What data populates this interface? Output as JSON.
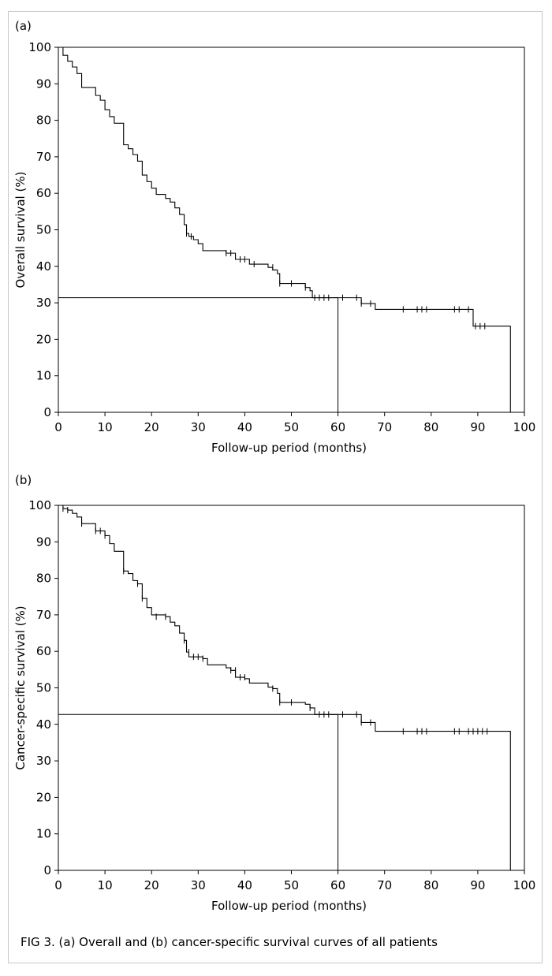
{
  "caption": "FIG 3.  (a) Overall and (b) cancer-specific survival curves of all patients",
  "chart_data": [
    {
      "type": "line",
      "panel_label": "(a)",
      "xlabel": "Follow-up period (months)",
      "ylabel": "Overall survival (%)",
      "xlim": [
        0,
        100
      ],
      "ylim": [
        0,
        100
      ],
      "xticks": [
        0,
        10,
        20,
        30,
        40,
        50,
        60,
        70,
        80,
        90,
        100
      ],
      "yticks": [
        0,
        10,
        20,
        30,
        40,
        50,
        60,
        70,
        80,
        90,
        100
      ],
      "grid": false,
      "series": [
        {
          "step_points": [
            [
              0,
              100
            ],
            [
              1,
              97.8
            ],
            [
              2,
              96.2
            ],
            [
              3,
              94.6
            ],
            [
              4,
              92.8
            ],
            [
              5,
              89
            ],
            [
              8,
              86.8
            ],
            [
              9,
              85.5
            ],
            [
              10,
              82.9
            ],
            [
              11,
              81
            ],
            [
              12,
              79.2
            ],
            [
              14,
              73.3
            ],
            [
              15,
              72.2
            ],
            [
              16,
              70.6
            ],
            [
              17,
              68.8
            ],
            [
              18,
              65
            ],
            [
              19,
              63.2
            ],
            [
              20,
              61.4
            ],
            [
              21,
              59.7
            ],
            [
              23,
              58.6
            ],
            [
              24,
              57.6
            ],
            [
              25,
              56
            ],
            [
              26,
              54.2
            ],
            [
              27,
              51.4
            ],
            [
              27.5,
              49
            ],
            [
              28,
              48.2
            ],
            [
              29,
              47.3
            ],
            [
              30,
              46.2
            ],
            [
              31,
              44.3
            ],
            [
              36,
              43.6
            ],
            [
              38,
              41.9
            ],
            [
              40,
              41.9
            ],
            [
              41,
              40.6
            ],
            [
              45,
              39.7
            ],
            [
              46,
              39
            ],
            [
              47,
              38
            ],
            [
              47.5,
              35.3
            ],
            [
              53,
              34.2
            ],
            [
              54,
              33.3
            ],
            [
              54.5,
              31.4
            ],
            [
              64,
              31.4
            ],
            [
              65,
              29.8
            ],
            [
              68,
              28.2
            ],
            [
              88,
              28.2
            ],
            [
              89,
              23.6
            ],
            [
              97,
              23.6
            ],
            [
              97,
              0
            ]
          ],
          "censor_marks": [
            [
              27.5,
              49
            ],
            [
              28.5,
              48.2
            ],
            [
              36,
              43.6
            ],
            [
              37,
              43.6
            ],
            [
              39,
              41.9
            ],
            [
              40,
              41.9
            ],
            [
              42,
              40.6
            ],
            [
              46,
              39.7
            ],
            [
              47.5,
              35.3
            ],
            [
              50,
              35.3
            ],
            [
              53,
              34.2
            ],
            [
              55,
              31.4
            ],
            [
              56,
              31.4
            ],
            [
              57,
              31.4
            ],
            [
              58,
              31.4
            ],
            [
              61,
              31.4
            ],
            [
              64,
              31.4
            ],
            [
              65,
              29.8
            ],
            [
              67,
              29.8
            ],
            [
              74,
              28.2
            ],
            [
              77,
              28.2
            ],
            [
              78,
              28.2
            ],
            [
              79,
              28.2
            ],
            [
              85,
              28.2
            ],
            [
              86,
              28.2
            ],
            [
              88,
              28.2
            ],
            [
              89.5,
              23.6
            ],
            [
              90.5,
              23.6
            ],
            [
              91.5,
              23.6
            ]
          ]
        }
      ],
      "reference_lines": {
        "y": 31.4,
        "x": 60
      }
    },
    {
      "type": "line",
      "panel_label": "(b)",
      "xlabel": "Follow-up period (months)",
      "ylabel": "Cancer-specific survival (%)",
      "xlim": [
        0,
        100
      ],
      "ylim": [
        0,
        100
      ],
      "xticks": [
        0,
        10,
        20,
        30,
        40,
        50,
        60,
        70,
        80,
        90,
        100
      ],
      "yticks": [
        0,
        10,
        20,
        30,
        40,
        50,
        60,
        70,
        80,
        90,
        100
      ],
      "grid": false,
      "series": [
        {
          "step_points": [
            [
              0,
              100
            ],
            [
              1,
              99.1
            ],
            [
              2,
              98.7
            ],
            [
              3,
              97.8
            ],
            [
              4,
              96.8
            ],
            [
              5,
              95
            ],
            [
              8,
              93
            ],
            [
              10,
              91.7
            ],
            [
              11,
              89.5
            ],
            [
              12,
              87.4
            ],
            [
              14,
              82
            ],
            [
              15,
              81.3
            ],
            [
              16,
              79.4
            ],
            [
              17,
              78.5
            ],
            [
              18,
              74.5
            ],
            [
              19,
              72
            ],
            [
              20,
              70
            ],
            [
              23,
              69.5
            ],
            [
              24,
              68
            ],
            [
              25,
              67
            ],
            [
              26,
              65
            ],
            [
              27,
              63
            ],
            [
              27.5,
              59.8
            ],
            [
              28,
              58.5
            ],
            [
              31,
              58
            ],
            [
              32,
              56.3
            ],
            [
              36,
              55.5
            ],
            [
              37,
              54.8
            ],
            [
              38,
              52.9
            ],
            [
              40,
              52.5
            ],
            [
              41,
              51.3
            ],
            [
              45,
              50.2
            ],
            [
              46,
              49.8
            ],
            [
              47,
              48.5
            ],
            [
              47.5,
              46
            ],
            [
              53,
              45.5
            ],
            [
              54,
              44.5
            ],
            [
              55,
              42.7
            ],
            [
              64,
              42.7
            ],
            [
              65,
              40.5
            ],
            [
              68,
              38.1
            ],
            [
              97,
              38.1
            ],
            [
              97,
              0
            ]
          ],
          "censor_marks": [
            [
              1,
              99.1
            ],
            [
              2,
              98.7
            ],
            [
              5,
              95
            ],
            [
              8,
              93
            ],
            [
              9,
              93
            ],
            [
              10,
              91.7
            ],
            [
              14,
              82
            ],
            [
              17,
              78.5
            ],
            [
              18,
              74.5
            ],
            [
              21,
              69.5
            ],
            [
              23,
              69.5
            ],
            [
              27,
              63
            ],
            [
              28,
              59.8
            ],
            [
              29,
              58.5
            ],
            [
              30,
              58.5
            ],
            [
              31,
              58
            ],
            [
              37,
              54.8
            ],
            [
              38,
              54.8
            ],
            [
              39,
              52.9
            ],
            [
              40,
              52.9
            ],
            [
              46,
              49.8
            ],
            [
              47.5,
              46
            ],
            [
              50,
              46
            ],
            [
              54,
              44.5
            ],
            [
              56,
              42.7
            ],
            [
              57,
              42.7
            ],
            [
              58,
              42.7
            ],
            [
              61,
              42.7
            ],
            [
              64,
              42.7
            ],
            [
              65,
              40.5
            ],
            [
              67,
              40.5
            ],
            [
              74,
              38.1
            ],
            [
              77,
              38.1
            ],
            [
              78,
              38.1
            ],
            [
              79,
              38.1
            ],
            [
              85,
              38.1
            ],
            [
              86,
              38.1
            ],
            [
              88,
              38.1
            ],
            [
              89,
              38.1
            ],
            [
              90,
              38.1
            ],
            [
              91,
              38.1
            ],
            [
              92,
              38.1
            ]
          ]
        }
      ],
      "reference_lines": {
        "y": 42.7,
        "x": 60
      }
    }
  ]
}
